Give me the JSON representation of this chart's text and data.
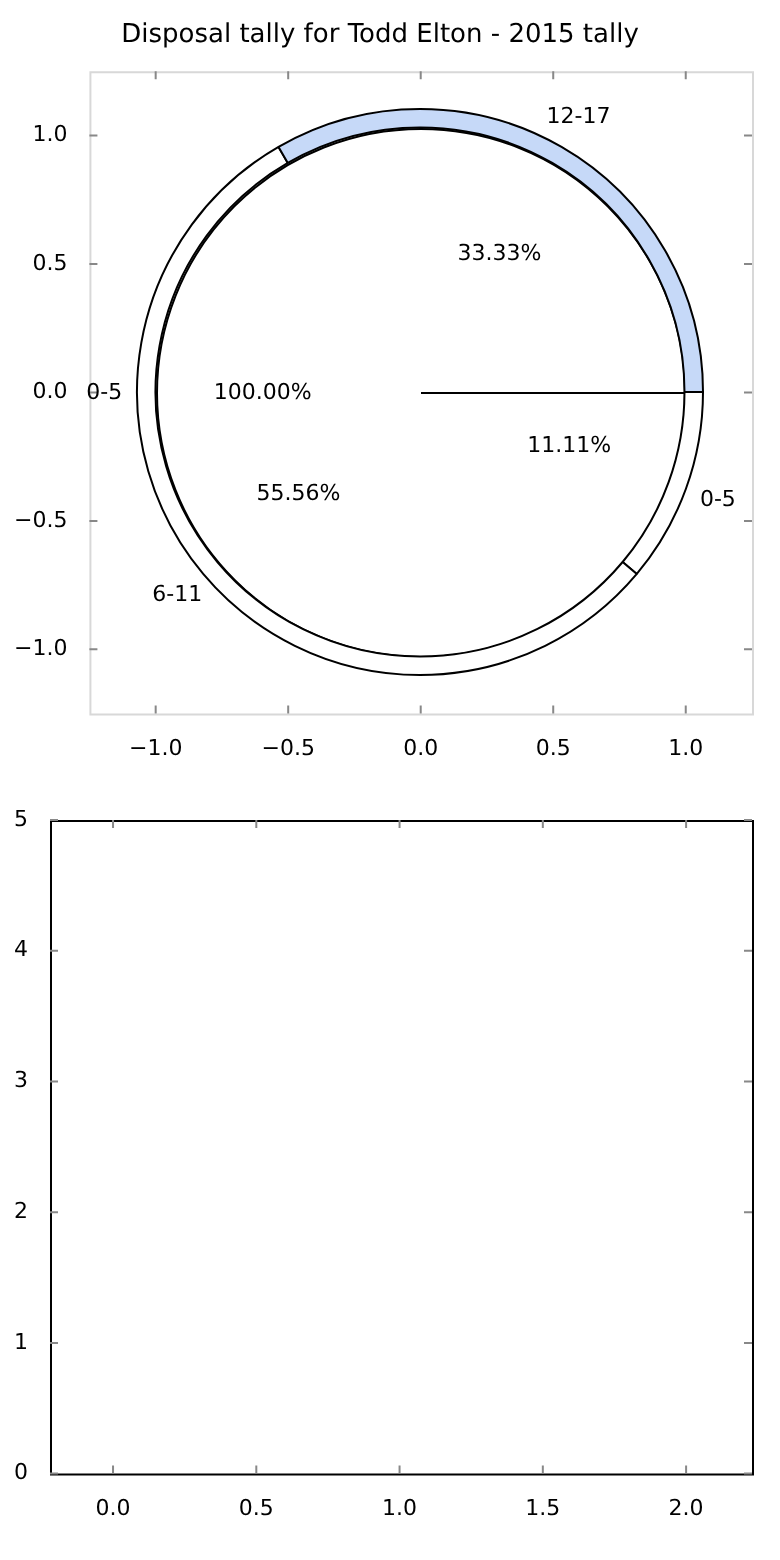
{
  "chart_data": [
    {
      "type": "scatter",
      "title": "Disposal tally for Todd Elton - 2015 tally",
      "xlim": [
        -1.25,
        1.25
      ],
      "ylim": [
        -1.25,
        1.25
      ],
      "xticks": [
        {
          "value": -1,
          "label": "−1.0"
        },
        {
          "value": -0.5,
          "label": "−0.5"
        },
        {
          "value": 0,
          "label": "0.0"
        },
        {
          "value": 0.5,
          "label": "0.5"
        },
        {
          "value": 1,
          "label": "1.0"
        }
      ],
      "yticks": [
        {
          "value": -1,
          "label": "−1.0"
        },
        {
          "value": -0.5,
          "label": "−0.5"
        },
        {
          "value": 0,
          "label": "0.0"
        },
        {
          "value": 0.5,
          "label": "0.5"
        },
        {
          "value": 1,
          "label": "1.0"
        }
      ],
      "grid": false
    },
    {
      "type": "pie",
      "categories": [
        "0-5"
      ],
      "values": [
        100
      ],
      "colors": [
        "#ffffff"
      ],
      "value_labels": [
        "100.00%"
      ]
    },
    {
      "type": "donut",
      "categories": [
        "0-5",
        "6-11",
        "12-17"
      ],
      "values": [
        11.11,
        55.56,
        33.33
      ],
      "colors": [
        "#ffffff",
        "#ffffff",
        "#c6d9f8"
      ],
      "value_labels": [
        "11.11%",
        "55.56%",
        "33.33%"
      ]
    },
    {
      "type": "scatter",
      "xlim": [
        -0.22,
        2.23
      ],
      "ylim": [
        0,
        5
      ],
      "xticks": [
        {
          "value": 0,
          "label": "0.0"
        },
        {
          "value": 0.5,
          "label": "0.5"
        },
        {
          "value": 1,
          "label": "1.0"
        },
        {
          "value": 1.5,
          "label": "1.5"
        },
        {
          "value": 2,
          "label": "2.0"
        }
      ],
      "yticks": [
        0,
        1,
        2,
        3,
        4,
        5
      ],
      "grid": false
    }
  ]
}
